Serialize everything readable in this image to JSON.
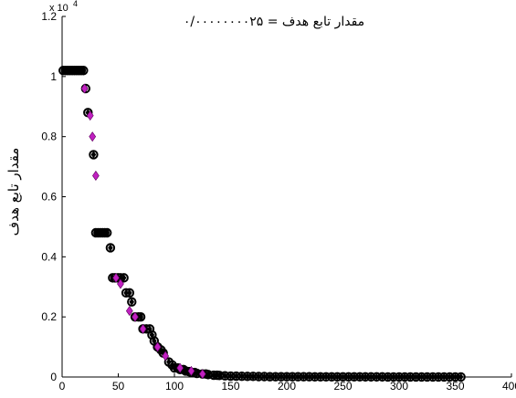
{
  "chart_data": {
    "type": "scatter",
    "title": "مقدار تابع هدف = ۰/۰۰۰۰۰۰۰۰۲۵",
    "xlabel": "",
    "ylabel": "مقدار تابع هدف",
    "xlim": [
      0,
      400
    ],
    "ylim": [
      0,
      12000
    ],
    "y_exponent_label": "x 10",
    "y_exponent_power": "4",
    "xticks": [
      0,
      50,
      100,
      150,
      200,
      250,
      300,
      350,
      400
    ],
    "yticks": [
      0,
      0.2,
      0.4,
      0.6,
      0.8,
      1,
      1.2
    ],
    "grid": false,
    "colors": {
      "black_marker": "#000000",
      "magenta_marker": "#c020c0"
    },
    "series": [
      {
        "marker": "black-circle-diamond",
        "x": [
          1,
          3,
          5,
          7,
          9,
          11,
          13,
          15,
          17,
          19,
          21,
          23,
          28,
          30,
          32,
          34,
          36,
          38,
          40,
          43,
          45,
          47,
          50,
          52,
          55,
          57,
          60,
          62,
          65,
          68,
          70,
          72,
          75,
          78,
          80,
          82,
          85,
          88,
          90,
          95,
          98,
          100,
          103,
          105,
          108,
          110,
          113,
          115,
          118,
          120,
          125,
          128,
          130,
          135,
          138,
          140,
          145,
          150,
          155,
          160,
          165,
          170,
          175,
          180,
          185,
          190,
          195,
          200,
          205,
          210,
          215,
          220,
          225,
          230,
          235,
          240,
          245,
          250,
          255,
          260,
          265,
          270,
          275,
          280,
          285,
          290,
          295,
          300,
          305,
          310,
          315,
          320,
          325,
          330,
          335,
          340,
          345,
          350,
          355
        ],
        "y": [
          10200,
          10200,
          10200,
          10200,
          10200,
          10200,
          10200,
          10200,
          10200,
          10200,
          9600,
          8800,
          7400,
          4800,
          4800,
          4800,
          4800,
          4800,
          4800,
          4300,
          3300,
          3300,
          3300,
          3300,
          3300,
          2800,
          2800,
          2500,
          2000,
          2000,
          2000,
          1600,
          1600,
          1600,
          1400,
          1200,
          1000,
          900,
          800,
          500,
          400,
          300,
          300,
          250,
          250,
          200,
          180,
          150,
          150,
          120,
          100,
          100,
          80,
          60,
          60,
          50,
          40,
          30,
          30,
          25,
          20,
          20,
          15,
          15,
          10,
          10,
          10,
          10,
          8,
          8,
          8,
          8,
          6,
          6,
          6,
          6,
          5,
          5,
          5,
          5,
          5,
          4,
          4,
          4,
          4,
          3,
          3,
          3,
          3,
          3,
          3,
          2,
          2,
          2,
          2,
          2,
          2,
          2,
          2
        ]
      },
      {
        "marker": "magenta-diamond",
        "x": [
          20,
          25,
          27,
          30,
          48,
          52,
          60,
          65,
          72,
          85,
          92,
          105,
          115,
          125
        ],
        "y": [
          9600,
          8700,
          8000,
          6700,
          3300,
          3100,
          2200,
          2000,
          1600,
          1000,
          700,
          300,
          200,
          100
        ]
      }
    ]
  }
}
